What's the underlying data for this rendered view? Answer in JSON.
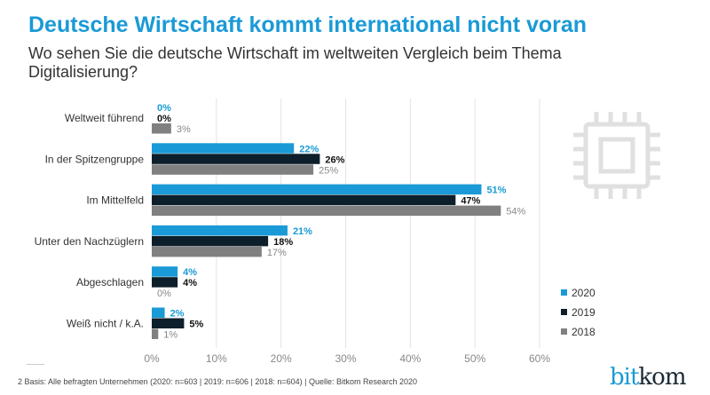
{
  "title": "Deutsche Wirtschaft kommt international nicht voran",
  "subtitle": "Wo sehen Sie die deutsche Wirtschaft im weltweiten Vergleich beim Thema Digitalisierung?",
  "footer": "2  Basis: Alle befragten Unternehmen (2020: n=603 | 2019: n=606 | 2018: n=604) | Quelle: Bitkom Research 2020",
  "logo": {
    "part1": "bit",
    "part2": "kom"
  },
  "decorative_icon": "microchip-icon",
  "chart_data": {
    "type": "bar",
    "orientation": "horizontal",
    "categories": [
      "Weltweit führend",
      "In der Spitzengruppe",
      "Im Mittelfeld",
      "Unter den Nachzüglern",
      "Abgeschlagen",
      "Weiß nicht / k.A."
    ],
    "series": [
      {
        "name": "2020",
        "color": "#1a9ad6",
        "values": [
          0,
          22,
          51,
          21,
          4,
          2
        ]
      },
      {
        "name": "2019",
        "color": "#0d1f2b",
        "values": [
          0,
          26,
          47,
          18,
          4,
          5
        ]
      },
      {
        "name": "2018",
        "color": "#808080",
        "values": [
          3,
          25,
          54,
          17,
          0,
          1
        ]
      }
    ],
    "xlim": [
      0,
      60
    ],
    "xticks": [
      "0%",
      "10%",
      "20%",
      "30%",
      "40%",
      "50%",
      "60%"
    ],
    "grid": true,
    "legend": "bottom-right",
    "value_suffix": "%"
  }
}
